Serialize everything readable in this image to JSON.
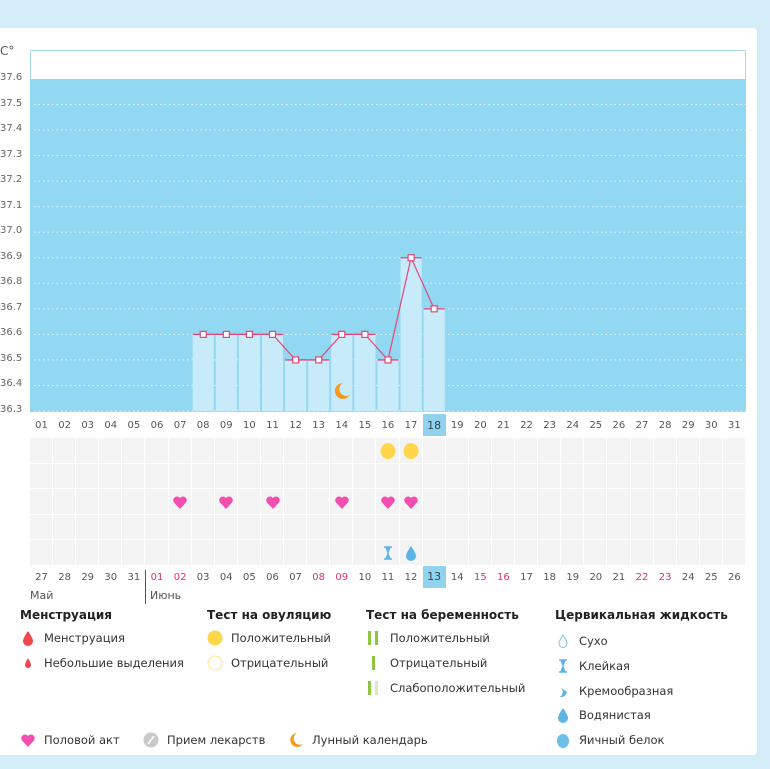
{
  "chart_data": {
    "type": "bar",
    "ylabel": "C°",
    "ylim": [
      36.3,
      37.6
    ],
    "yticks": [
      "37.6",
      "37.5",
      "37.4",
      "37.3",
      "37.2",
      "37.1",
      "37.0",
      "36.9",
      "36.8",
      "36.7",
      "36.6",
      "36.5",
      "36.4",
      "36.3"
    ],
    "cycle_days": [
      "01",
      "02",
      "03",
      "04",
      "05",
      "06",
      "07",
      "08",
      "09",
      "10",
      "11",
      "12",
      "13",
      "14",
      "15",
      "16",
      "17",
      "18",
      "19",
      "20",
      "21",
      "22",
      "23",
      "24",
      "25",
      "26",
      "27",
      "28",
      "29",
      "30",
      "31"
    ],
    "current_cycle_day": "18",
    "temperatures": [
      {
        "day": "08",
        "value": 36.6
      },
      {
        "day": "09",
        "value": 36.6
      },
      {
        "day": "10",
        "value": 36.6
      },
      {
        "day": "11",
        "value": 36.6
      },
      {
        "day": "12",
        "value": 36.5
      },
      {
        "day": "13",
        "value": 36.5
      },
      {
        "day": "14",
        "value": 36.6
      },
      {
        "day": "15",
        "value": 36.6
      },
      {
        "day": "16",
        "value": 36.5
      },
      {
        "day": "17",
        "value": 36.9
      },
      {
        "day": "18",
        "value": 36.7
      }
    ],
    "moon_day": "14",
    "grid": "dotted",
    "colors": {
      "background": "#93d8f2",
      "bar": "#c8ebfa",
      "line": "#e0487a"
    }
  },
  "calendar": {
    "dates": [
      "27",
      "28",
      "29",
      "30",
      "31",
      "01",
      "02",
      "03",
      "04",
      "05",
      "06",
      "07",
      "08",
      "09",
      "10",
      "11",
      "12",
      "13",
      "14",
      "15",
      "16",
      "17",
      "18",
      "19",
      "20",
      "21",
      "22",
      "23",
      "24",
      "25",
      "26"
    ],
    "weekend": [
      "01",
      "02",
      "08",
      "09",
      "15",
      "16",
      "22",
      "23"
    ],
    "weekend_start_index": 5,
    "today": "13",
    "months": [
      "Май",
      "Июнь"
    ]
  },
  "markers": {
    "ovulation_positive": [
      15,
      16
    ],
    "intercourse": [
      6,
      8,
      10,
      13,
      15,
      16
    ],
    "cervical": [
      {
        "index": 15,
        "type": "sticky"
      },
      {
        "index": 16,
        "type": "watery"
      }
    ]
  },
  "legend": {
    "menstruation": {
      "title": "Менструация",
      "items": [
        "Менструация",
        "Небольшие выделения"
      ]
    },
    "ovulation": {
      "title": "Тест на овуляцию",
      "items": [
        "Положительный",
        "Отрицательный"
      ]
    },
    "pregnancy": {
      "title": "Тест на беременность",
      "items": [
        "Положительный",
        "Отрицательный",
        "Слабоположительный"
      ]
    },
    "cervical": {
      "title": "Цервикальная жидкость",
      "items": [
        "Сухо",
        "Клейкая",
        "Кремообразная",
        "Водянистая",
        "Яичный белок"
      ]
    },
    "other": [
      "Половой акт",
      "Прием лекарств",
      "Лунный календарь"
    ]
  }
}
